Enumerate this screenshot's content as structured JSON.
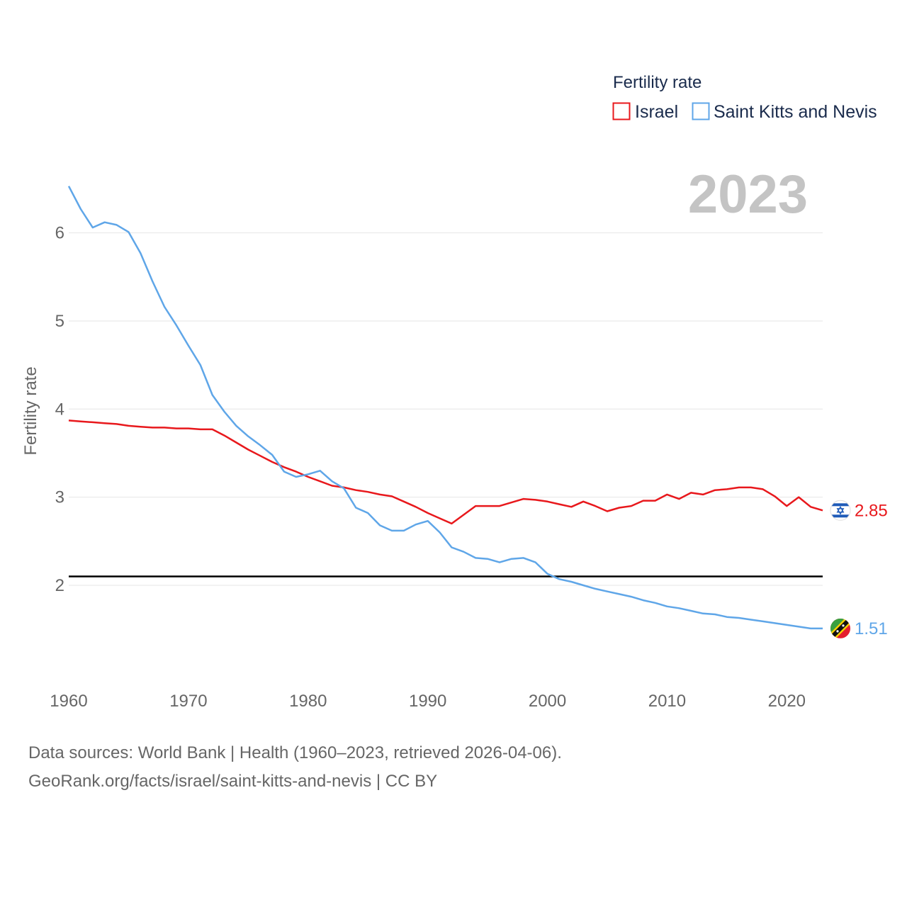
{
  "chart_data": {
    "type": "line",
    "title": "Fertility rate",
    "year_label": "2023",
    "xlabel": "",
    "ylabel": "Fertility rate",
    "xlim": [
      1960,
      2023
    ],
    "ylim": [
      1.3,
      6.6
    ],
    "x_ticks": [
      1960,
      1970,
      1980,
      1990,
      2000,
      2010,
      2020
    ],
    "y_ticks": [
      2,
      3,
      4,
      5,
      6
    ],
    "reference_line": {
      "y": 2.1,
      "color": "#000000"
    },
    "legend": {
      "title": "Fertility rate",
      "position": "top-right"
    },
    "series": [
      {
        "name": "Israel",
        "color": "#e8181c",
        "end_label": "2.85",
        "flag_icon": "israel-flag-icon",
        "years": [
          1960,
          1961,
          1962,
          1963,
          1964,
          1965,
          1966,
          1967,
          1968,
          1969,
          1970,
          1971,
          1972,
          1973,
          1974,
          1975,
          1976,
          1977,
          1978,
          1979,
          1980,
          1981,
          1982,
          1983,
          1984,
          1985,
          1986,
          1987,
          1988,
          1989,
          1990,
          1991,
          1992,
          1993,
          1994,
          1995,
          1996,
          1997,
          1998,
          1999,
          2000,
          2001,
          2002,
          2003,
          2004,
          2005,
          2006,
          2007,
          2008,
          2009,
          2010,
          2011,
          2012,
          2013,
          2014,
          2015,
          2016,
          2017,
          2018,
          2019,
          2020,
          2021,
          2022,
          2023
        ],
        "values": [
          3.87,
          3.86,
          3.85,
          3.84,
          3.83,
          3.81,
          3.8,
          3.79,
          3.79,
          3.78,
          3.78,
          3.77,
          3.77,
          3.7,
          3.62,
          3.54,
          3.47,
          3.4,
          3.34,
          3.29,
          3.23,
          3.18,
          3.13,
          3.11,
          3.08,
          3.06,
          3.03,
          3.01,
          2.95,
          2.89,
          2.82,
          2.76,
          2.7,
          2.8,
          2.9,
          2.9,
          2.9,
          2.94,
          2.98,
          2.97,
          2.95,
          2.92,
          2.89,
          2.95,
          2.9,
          2.84,
          2.88,
          2.9,
          2.96,
          2.96,
          3.03,
          2.98,
          3.05,
          3.03,
          3.08,
          3.09,
          3.11,
          3.11,
          3.09,
          3.01,
          2.9,
          3.0,
          2.89,
          2.85
        ]
      },
      {
        "name": "Saint Kitts and Nevis",
        "color": "#5fa6e8",
        "end_label": "1.51",
        "flag_icon": "saint-kitts-and-nevis-flag-icon",
        "years": [
          1960,
          1961,
          1962,
          1963,
          1964,
          1965,
          1966,
          1967,
          1968,
          1969,
          1970,
          1971,
          1972,
          1973,
          1974,
          1975,
          1976,
          1977,
          1978,
          1979,
          1980,
          1981,
          1982,
          1983,
          1984,
          1985,
          1986,
          1987,
          1988,
          1989,
          1990,
          1991,
          1992,
          1993,
          1994,
          1995,
          1996,
          1997,
          1998,
          1999,
          2000,
          2001,
          2002,
          2003,
          2004,
          2005,
          2006,
          2007,
          2008,
          2009,
          2010,
          2011,
          2012,
          2013,
          2014,
          2015,
          2016,
          2017,
          2018,
          2019,
          2020,
          2021,
          2022,
          2023
        ],
        "values": [
          6.53,
          6.27,
          6.06,
          6.12,
          6.09,
          6.01,
          5.77,
          5.45,
          5.16,
          4.95,
          4.72,
          4.5,
          4.16,
          3.97,
          3.81,
          3.69,
          3.59,
          3.48,
          3.29,
          3.23,
          3.26,
          3.3,
          3.18,
          3.1,
          2.88,
          2.82,
          2.68,
          2.62,
          2.62,
          2.69,
          2.73,
          2.6,
          2.43,
          2.38,
          2.31,
          2.3,
          2.26,
          2.3,
          2.31,
          2.26,
          2.13,
          2.07,
          2.04,
          2.0,
          1.96,
          1.93,
          1.9,
          1.87,
          1.83,
          1.8,
          1.76,
          1.74,
          1.71,
          1.68,
          1.67,
          1.64,
          1.63,
          1.61,
          1.59,
          1.57,
          1.55,
          1.53,
          1.51,
          1.51
        ]
      }
    ]
  },
  "source": {
    "line1": "Data sources: World Bank | Health (1960–2023, retrieved 2026-04-06).",
    "line2": "GeoRank.org/facts/israel/saint-kitts-and-nevis | CC BY"
  }
}
